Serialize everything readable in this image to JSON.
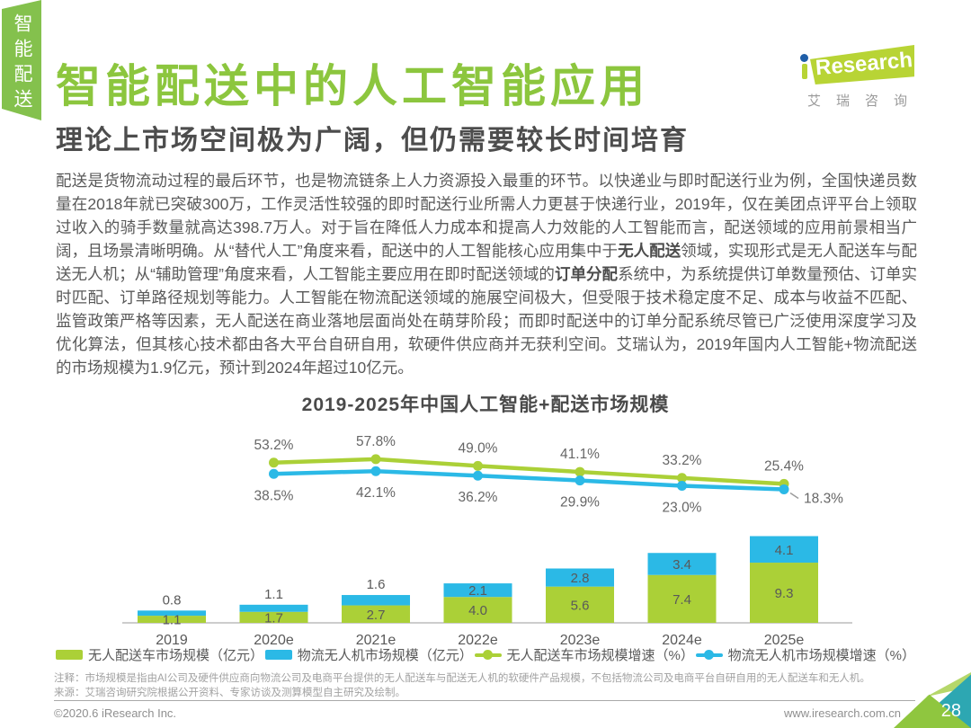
{
  "page": {
    "sidebar_tab": "智能配送",
    "title": "智能配送中的人工智能应用",
    "subtitle": "理论上市场空间极为广阔，但仍需要较长时间培育",
    "logo": {
      "brand": "Research",
      "chinese": "艾瑞咨询"
    },
    "footer": {
      "copyright": "©2020.6 iResearch Inc.",
      "website": "www.iresearch.com.cn",
      "page_number": "28"
    }
  },
  "paragraph": {
    "segments": [
      {
        "bold": false,
        "text": "配送是货物流动过程的最后环节，也是物流链条上人力资源投入最重的环节。以快递业与即时配送行业为例，全国快递员数量在2018年就已突破300万，工作灵活性较强的即时配送行业所需人力更甚于快递行业，2019年，仅在美团点评平台上领取过收入的骑手数量就高达398.7万人。对于旨在降低人力成本和提高人力效能的人工智能而言，配送领域的应用前景相当广阔，且场景清晰明确。从“替代人工”角度来看，配送中的人工智能核心应用集中于"
      },
      {
        "bold": true,
        "text": "无人配送"
      },
      {
        "bold": false,
        "text": "领域，实现形式是无人配送车与配送无人机；从“辅助管理”角度来看，人工智能主要应用在即时配送领域的"
      },
      {
        "bold": true,
        "text": "订单分配"
      },
      {
        "bold": false,
        "text": "系统中，为系统提供订单数量预估、订单实时匹配、订单路径规划等能力。人工智能在物流配送领域的施展空间极大，但受限于技术稳定度不足、成本与收益不匹配、监管政策严格等因素，无人配送在商业落地层面尚处在萌芽阶段；而即时配送中的订单分配系统尽管已广泛使用深度学习及优化算法，但其核心技术都由各大平台自研自用，软硬件供应商并无获利空间。艾瑞认为，2019年国内人工智能+物流配送的市场规模为1.9亿元，预计到2024年超过10亿元。"
      }
    ]
  },
  "chart_data": {
    "type": "bar",
    "subtype": "stacked-bars-with-growth-lines",
    "title": "2019-2025年中国人工智能+配送市场规模",
    "categories": [
      "2019",
      "2020e",
      "2021e",
      "2022e",
      "2023e",
      "2024e",
      "2025e"
    ],
    "bar_series": [
      {
        "name": "无人配送车市场规模（亿元）",
        "color": "#abd037",
        "values": [
          1.1,
          1.7,
          2.7,
          4.0,
          5.6,
          7.4,
          9.3
        ]
      },
      {
        "name": "物流无人机市场规模（亿元）",
        "color": "#2bb9e6",
        "values": [
          0.8,
          1.1,
          1.6,
          2.1,
          2.8,
          3.4,
          4.1
        ]
      }
    ],
    "line_series": [
      {
        "name": "无人配送车市场规模增速（%）",
        "color": "#abd037",
        "x": [
          "2020e",
          "2021e",
          "2022e",
          "2023e",
          "2024e",
          "2025e"
        ],
        "values": [
          53.2,
          57.8,
          49.0,
          41.1,
          33.2,
          25.4
        ]
      },
      {
        "name": "物流无人机市场规模增速（%）",
        "color": "#2bb9e6",
        "x": [
          "2020e",
          "2021e",
          "2022e",
          "2023e",
          "2024e",
          "2025e"
        ],
        "values": [
          38.5,
          42.1,
          36.2,
          29.9,
          23.0,
          18.3
        ]
      }
    ],
    "legend": [
      {
        "type": "bar",
        "color": "#abd037",
        "label": "无人配送车市场规模（亿元）"
      },
      {
        "type": "bar",
        "color": "#2bb9e6",
        "label": "物流无人机市场规模（亿元）"
      },
      {
        "type": "line",
        "color": "#abd037",
        "label": "无人配送车市场规模增速（%）"
      },
      {
        "type": "line",
        "color": "#2bb9e6",
        "label": "物流无人机市场规模增速（%）"
      }
    ],
    "grid": false,
    "legend_position": "bottom",
    "notes": [
      "注释：市场规模是指由AI公司及硬件供应商向物流公司及电商平台提供的无人配送车与配送无人机的软硬件产品规模，不包括物流公司及电商平台自研自用的无人配送车和无人机。",
      "来源：艾瑞咨询研究院根据公开资料、专家访谈及测算模型自主研究及绘制。"
    ]
  }
}
